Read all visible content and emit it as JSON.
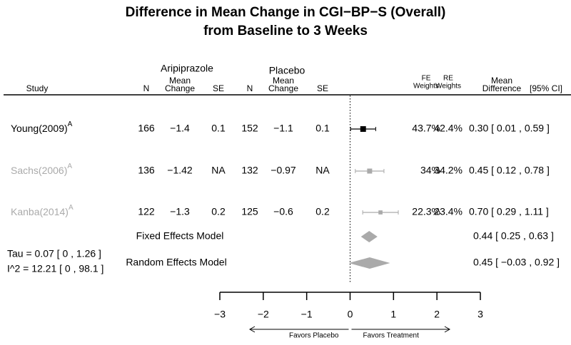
{
  "chart_data": {
    "type": "forest",
    "title": [
      "Difference in Mean Change in CGI−BP−S (Overall)",
      "from Baseline to 3 Weeks"
    ],
    "group_headers": [
      "Aripiprazole",
      "Placebo"
    ],
    "columns": {
      "study": "Study",
      "n1": "N",
      "mean1": [
        "Mean",
        "Change"
      ],
      "se1": "SE",
      "n2": "N",
      "mean2": [
        "Mean",
        "Change"
      ],
      "se2": "SE",
      "fe": [
        "FE",
        "Weights"
      ],
      "re": [
        "RE",
        "Weights"
      ],
      "md": [
        "Mean",
        "Difference"
      ],
      "ci": "[95% CI]"
    },
    "studies": [
      {
        "study": "Young(2009)",
        "sup": "A",
        "n1": 166,
        "mean1": "−1.4",
        "se1": 0.1,
        "n2": 152,
        "mean2": "−1.1",
        "se2": 0.1,
        "fe_weight": {
          "value": 43.7,
          "label": "43.7%"
        },
        "re_weight": {
          "value": 42.4,
          "label": "42.4%"
        },
        "estimate": 0.3,
        "lower": 0.01,
        "upper": 0.59,
        "ci_label": "0.30 [ 0.01 , 0.59 ]",
        "color": "#000000"
      },
      {
        "study": "Sachs(2006)",
        "sup": "A",
        "n1": 136,
        "mean1": "−1.42",
        "se1": "NA",
        "n2": 132,
        "mean2": "−0.97",
        "se2": "NA",
        "fe_weight": {
          "value": 34,
          "label": "34%"
        },
        "re_weight": {
          "value": 34.2,
          "label": "34.2%"
        },
        "estimate": 0.45,
        "lower": 0.12,
        "upper": 0.78,
        "ci_label": "0.45 [ 0.12 , 0.78 ]",
        "color": "#aaaaaa"
      },
      {
        "study": "Kanba(2014)",
        "sup": "A",
        "n1": 122,
        "mean1": "−1.3",
        "se1": 0.2,
        "n2": 125,
        "mean2": "−0.6",
        "se2": 0.2,
        "fe_weight": {
          "value": 22.3,
          "label": "22.3%"
        },
        "re_weight": {
          "value": 23.4,
          "label": "23.4%"
        },
        "estimate": 0.7,
        "lower": 0.29,
        "upper": 1.11,
        "ci_label": "0.70 [ 0.29 , 1.11 ]",
        "color": "#aaaaaa"
      }
    ],
    "models": [
      {
        "name": "Fixed Effects Model",
        "estimate": 0.44,
        "lower": 0.25,
        "upper": 0.63,
        "ci_label": "0.44 [ 0.25 , 0.63 ]",
        "color": "#aaaaaa"
      },
      {
        "name": "Random Effects Model",
        "estimate": 0.45,
        "lower": -0.03,
        "upper": 0.92,
        "ci_label": "0.45 [ −0.03 , 0.92 ]",
        "color": "#aaaaaa"
      }
    ],
    "heterogeneity": [
      "Tau = 0.07 [ 0 , 1.26 ]",
      "I^2 = 12.21 [ 0 , 98.1 ]"
    ],
    "xlim": [
      -3,
      3
    ],
    "xticks": [
      {
        "value": -3,
        "label": "−3"
      },
      {
        "value": -2,
        "label": "−2"
      },
      {
        "value": -1,
        "label": "−1"
      },
      0,
      1,
      2,
      3
    ],
    "arrow_labels": [
      "Favors Placebo",
      "Favors Treatment"
    ]
  }
}
